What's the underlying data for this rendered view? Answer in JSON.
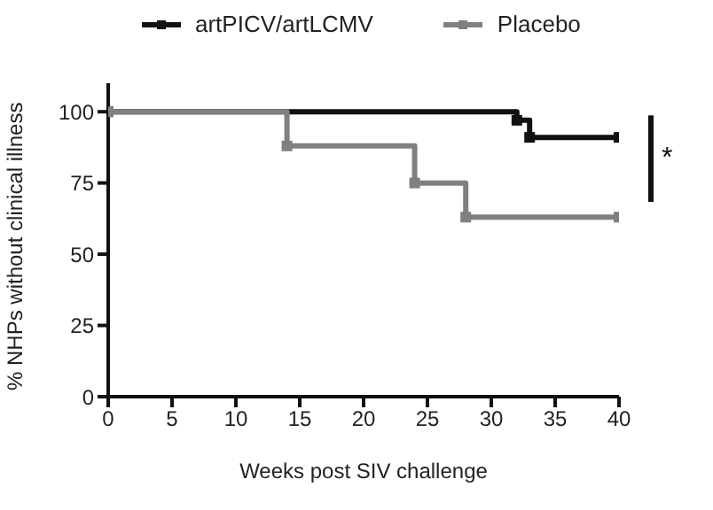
{
  "chart_data": {
    "type": "step",
    "xlabel": "Weeks post SIV challenge",
    "ylabel": "% NHPs without clinical illness",
    "xlim": [
      0,
      40
    ],
    "xticks": [
      0,
      5,
      10,
      15,
      20,
      25,
      30,
      35,
      40
    ],
    "ylim": [
      0,
      110
    ],
    "yticks": [
      0,
      25,
      50,
      75,
      100
    ],
    "series": [
      {
        "name": "artPICV/artLCMV",
        "color": "#111111",
        "x": [
          0,
          32,
          33,
          40
        ],
        "values": [
          100,
          97,
          91,
          91
        ]
      },
      {
        "name": "Placebo",
        "color": "#808080",
        "x": [
          0,
          14,
          24,
          28,
          40
        ],
        "values": [
          100,
          88,
          75,
          63,
          63
        ]
      }
    ],
    "annotations": [
      "*"
    ],
    "marker": "square",
    "legend": "top",
    "grid": false
  }
}
